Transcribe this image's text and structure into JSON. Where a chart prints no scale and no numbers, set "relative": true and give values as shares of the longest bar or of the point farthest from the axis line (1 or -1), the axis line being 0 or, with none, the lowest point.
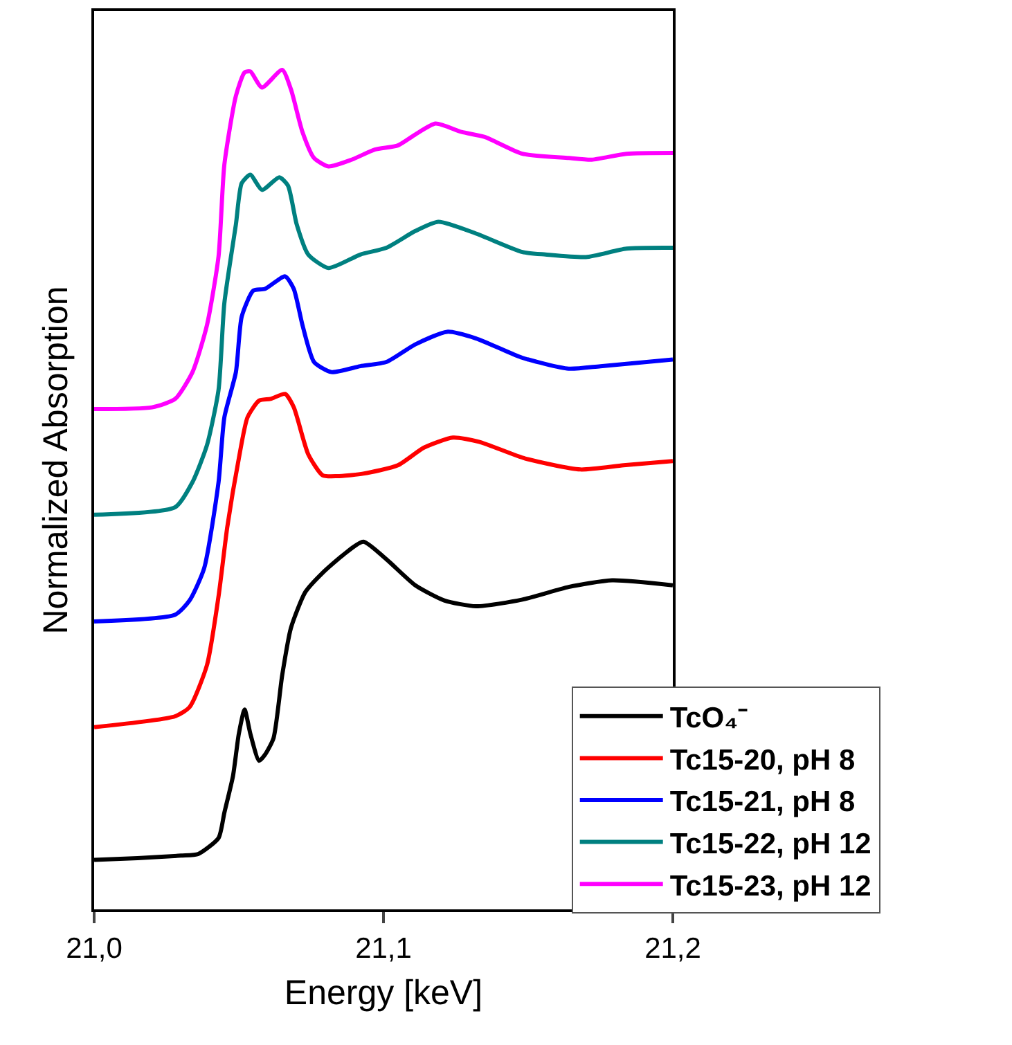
{
  "chart_data": {
    "type": "line",
    "relative": true,
    "xlabel": "Energy [keV]",
    "ylabel": "Normalized Absorption",
    "xlim": [
      21.0,
      21.2
    ],
    "xticks": [
      {
        "value": 21.0,
        "label": "21,0"
      },
      {
        "value": 21.1,
        "label": "21,1"
      },
      {
        "value": 21.2,
        "label": "21,2"
      }
    ],
    "legend": "bottom right",
    "marker": "none",
    "line_style": "solid",
    "series": [
      {
        "name": "TcO₄⁻",
        "color": "#000000",
        "x": [
          21.0,
          21.015,
          21.03,
          21.036,
          21.043,
          21.045,
          21.048,
          21.05,
          21.052,
          21.054,
          21.057,
          21.059,
          21.062,
          21.065,
          21.068,
          21.073,
          21.079,
          21.086,
          21.093,
          21.101,
          21.111,
          21.121,
          21.132,
          21.148,
          21.164,
          21.179,
          21.2
        ],
        "values": [
          0.059,
          0.061,
          0.064,
          0.066,
          0.085,
          0.115,
          0.159,
          0.209,
          0.238,
          0.209,
          0.177,
          0.184,
          0.204,
          0.279,
          0.335,
          0.378,
          0.401,
          0.422,
          0.438,
          0.417,
          0.386,
          0.368,
          0.361,
          0.369,
          0.384,
          0.392,
          0.386
        ]
      },
      {
        "name": "Tc15-20, pH 8",
        "color": "#ff0000",
        "x": [
          21.0,
          21.028,
          21.033,
          21.039,
          21.043,
          21.046,
          21.05,
          21.053,
          21.057,
          21.061,
          21.066,
          21.069,
          21.074,
          21.079,
          21.084,
          21.093,
          21.105,
          21.114,
          21.124,
          21.133,
          21.149,
          21.168,
          21.183,
          21.2
        ],
        "values": [
          0.217,
          0.23,
          0.241,
          0.291,
          0.373,
          0.455,
          0.537,
          0.586,
          0.606,
          0.608,
          0.614,
          0.598,
          0.542,
          0.517,
          0.516,
          0.519,
          0.529,
          0.55,
          0.562,
          0.557,
          0.537,
          0.524,
          0.529,
          0.534
        ]
      },
      {
        "name": "Tc15-21, pH 8",
        "color": "#0000ff",
        "x": [
          21.0,
          21.028,
          21.033,
          21.038,
          21.043,
          21.045,
          21.049,
          21.051,
          21.055,
          21.059,
          21.066,
          21.069,
          21.072,
          21.076,
          21.082,
          21.092,
          21.101,
          21.111,
          21.122,
          21.132,
          21.148,
          21.164,
          21.175,
          21.2
        ],
        "values": [
          0.343,
          0.351,
          0.368,
          0.406,
          0.509,
          0.586,
          0.64,
          0.706,
          0.737,
          0.739,
          0.754,
          0.739,
          0.696,
          0.652,
          0.64,
          0.647,
          0.652,
          0.673,
          0.688,
          0.68,
          0.657,
          0.644,
          0.647,
          0.655
        ]
      },
      {
        "name": "Tc15-22, pH 12",
        "color": "#008080",
        "x": [
          21.0,
          21.028,
          21.034,
          21.039,
          21.043,
          21.045,
          21.049,
          21.051,
          21.054,
          21.058,
          21.064,
          21.067,
          21.07,
          21.074,
          21.081,
          21.092,
          21.101,
          21.111,
          21.119,
          21.132,
          21.148,
          21.156,
          21.17,
          21.184,
          21.2
        ],
        "values": [
          0.47,
          0.479,
          0.509,
          0.553,
          0.619,
          0.722,
          0.816,
          0.865,
          0.875,
          0.857,
          0.872,
          0.862,
          0.816,
          0.78,
          0.764,
          0.78,
          0.788,
          0.808,
          0.819,
          0.805,
          0.783,
          0.78,
          0.777,
          0.787,
          0.788
        ]
      },
      {
        "name": "Tc15-23, pH 12",
        "color": "#ff00ff",
        "x": [
          21.0,
          21.02,
          21.028,
          21.034,
          21.039,
          21.043,
          21.045,
          21.049,
          21.052,
          21.054,
          21.058,
          21.065,
          21.068,
          21.072,
          21.076,
          21.081,
          21.089,
          21.097,
          21.105,
          21.111,
          21.118,
          21.127,
          21.135,
          21.148,
          21.164,
          21.172,
          21.184,
          21.2
        ],
        "values": [
          0.596,
          0.598,
          0.608,
          0.64,
          0.696,
          0.778,
          0.887,
          0.969,
          0.997,
          0.998,
          0.979,
          1.0,
          0.977,
          0.926,
          0.895,
          0.885,
          0.893,
          0.905,
          0.91,
          0.923,
          0.936,
          0.926,
          0.92,
          0.9,
          0.895,
          0.893,
          0.9,
          0.901
        ]
      }
    ]
  }
}
